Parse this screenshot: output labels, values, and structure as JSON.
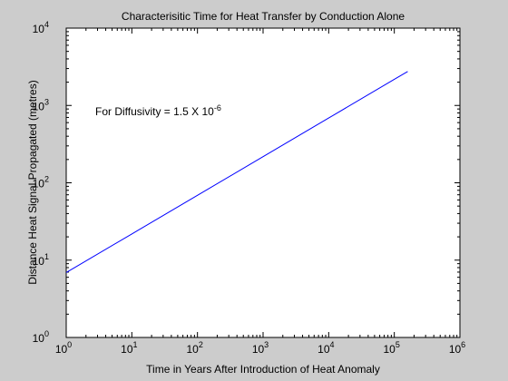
{
  "chart_data": {
    "type": "line",
    "title": "Characterisitic Time for Heat Transfer by Conduction Alone",
    "xlabel": "Time in Years After Introduction of Heat Anomaly",
    "ylabel": "Distance Heat Signal Propagated (metres)",
    "xscale": "log",
    "yscale": "log",
    "xlim": [
      1,
      1000000
    ],
    "ylim": [
      1,
      10000
    ],
    "grid": false,
    "x_ticks": [
      {
        "base": "10",
        "exp": "0",
        "value": 1
      },
      {
        "base": "10",
        "exp": "1",
        "value": 10
      },
      {
        "base": "10",
        "exp": "2",
        "value": 100
      },
      {
        "base": "10",
        "exp": "3",
        "value": 1000
      },
      {
        "base": "10",
        "exp": "4",
        "value": 10000
      },
      {
        "base": "10",
        "exp": "5",
        "value": 100000
      },
      {
        "base": "10",
        "exp": "6",
        "value": 1000000
      }
    ],
    "y_ticks": [
      {
        "base": "10",
        "exp": "0",
        "value": 1
      },
      {
        "base": "10",
        "exp": "1",
        "value": 10
      },
      {
        "base": "10",
        "exp": "2",
        "value": 100
      },
      {
        "base": "10",
        "exp": "3",
        "value": 1000
      },
      {
        "base": "10",
        "exp": "4",
        "value": 10000
      }
    ],
    "annotation": {
      "prefix": "For Diffusivity = 1.5 X 10",
      "exp": "-6"
    },
    "series": [
      {
        "color": "#0000ff",
        "x": [
          1,
          10,
          100,
          1000,
          10000,
          100000,
          160000
        ],
        "y": [
          6.9,
          21.8,
          68.8,
          217.6,
          688,
          2176,
          2750
        ]
      }
    ]
  }
}
